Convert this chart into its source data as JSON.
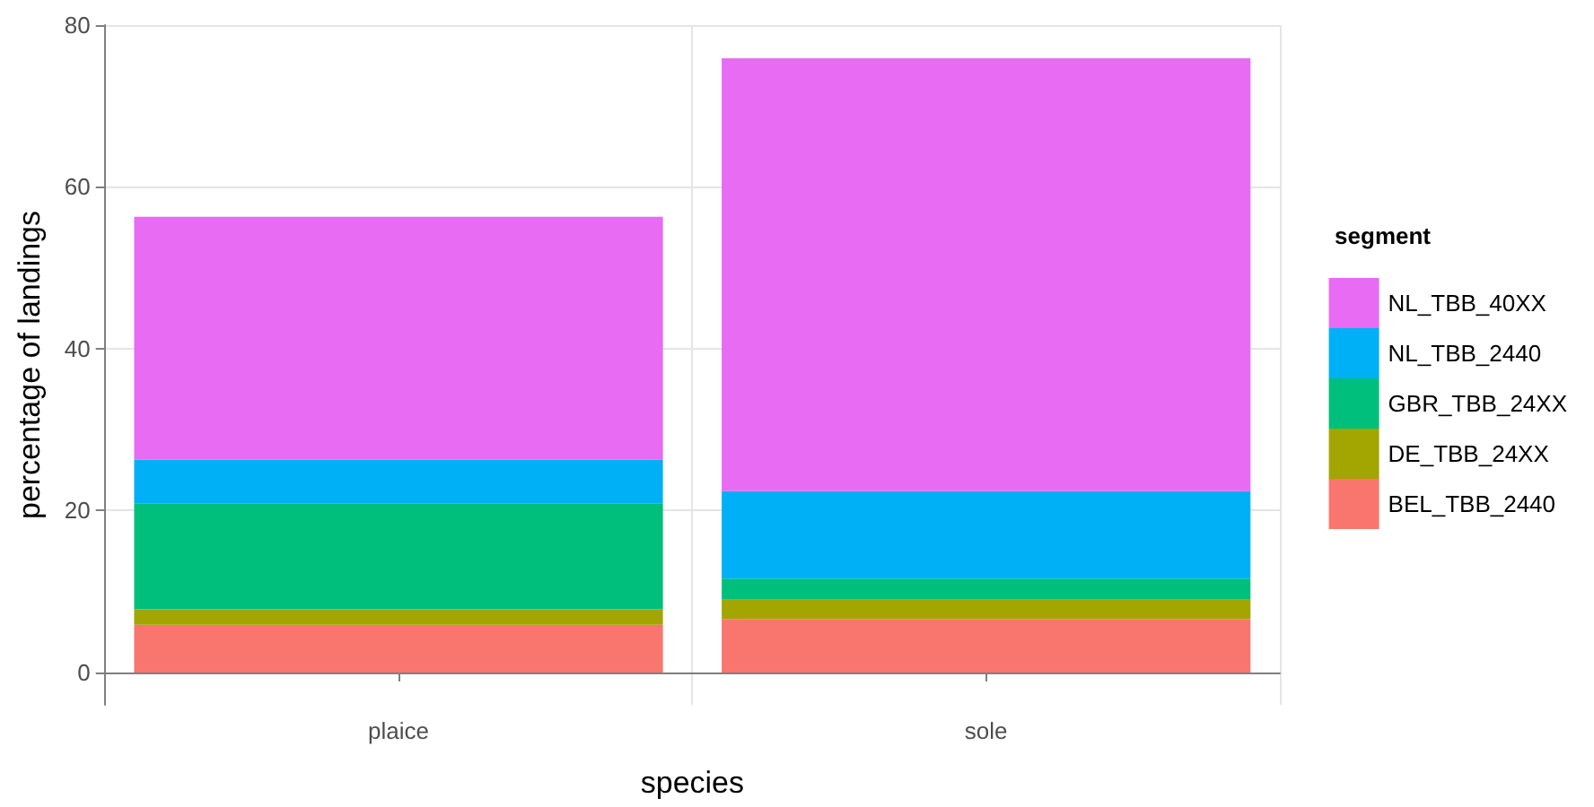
{
  "chart_data": {
    "type": "bar",
    "stacked": true,
    "xlabel": "species",
    "ylabel": "percentage of landings",
    "legend_title": "segment",
    "categories": [
      "plaice",
      "sole"
    ],
    "series": [
      {
        "name": "BEL_TBB_2440",
        "color": "#f8766d",
        "values": [
          5.9,
          6.6
        ]
      },
      {
        "name": "DE_TBB_24XX",
        "color": "#a3a500",
        "values": [
          1.9,
          2.4
        ]
      },
      {
        "name": "GBR_TBB_24XX",
        "color": "#00bf7d",
        "values": [
          13.1,
          2.6
        ]
      },
      {
        "name": "NL_TBB_2440",
        "color": "#00b0f6",
        "values": [
          5.4,
          10.8
        ]
      },
      {
        "name": "NL_TBB_40XX",
        "color": "#e76bf3",
        "values": [
          30.0,
          53.5
        ]
      }
    ],
    "ylim": [
      -4,
      80
    ],
    "yticks": [
      0,
      20,
      40,
      60,
      80
    ],
    "grid": true,
    "legend": "right"
  }
}
